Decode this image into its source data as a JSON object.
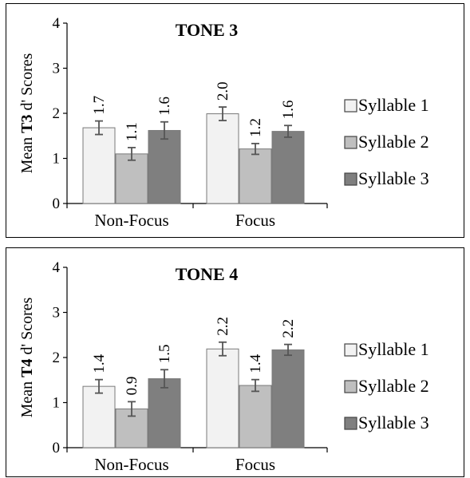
{
  "chart_data": [
    {
      "type": "bar",
      "title": "TONE 3",
      "ylabel_prefix": "Mean",
      "ylabel_bold": "T3",
      "ylabel_suffix": "d' Scores",
      "categories": [
        "Non-Focus",
        "Focus"
      ],
      "ylim": [
        0,
        4
      ],
      "yticks": [
        "0",
        "1",
        "2",
        "3",
        "4"
      ],
      "grid": false,
      "legend_position": "right",
      "series": [
        {
          "name": "Syllable 1",
          "color": "#f2f2f2",
          "values": [
            1.68,
            1.99
          ],
          "errors": [
            0.15,
            0.15
          ],
          "labels": [
            "1.7",
            "2.0"
          ]
        },
        {
          "name": "Syllable 2",
          "color": "#bfbfbf",
          "values": [
            1.1,
            1.21
          ],
          "errors": [
            0.14,
            0.12
          ],
          "labels": [
            "1.1",
            "1.2"
          ]
        },
        {
          "name": "Syllable 3",
          "color": "#7f7f7f",
          "values": [
            1.62,
            1.6
          ],
          "errors": [
            0.19,
            0.13
          ],
          "labels": [
            "1.6",
            "1.6"
          ]
        }
      ]
    },
    {
      "type": "bar",
      "title": "TONE 4",
      "ylabel_prefix": "Mean",
      "ylabel_bold": "T4",
      "ylabel_suffix": "d' Scores",
      "categories": [
        "Non-Focus",
        "Focus"
      ],
      "ylim": [
        0,
        4
      ],
      "yticks": [
        "0",
        "1",
        "2",
        "3",
        "4"
      ],
      "grid": false,
      "legend_position": "right",
      "series": [
        {
          "name": "Syllable 1",
          "color": "#f2f2f2",
          "values": [
            1.36,
            2.19
          ],
          "errors": [
            0.15,
            0.15
          ],
          "labels": [
            "1.4",
            "2.2"
          ]
        },
        {
          "name": "Syllable 2",
          "color": "#bfbfbf",
          "values": [
            0.86,
            1.38
          ],
          "errors": [
            0.16,
            0.13
          ],
          "labels": [
            "0.9",
            "1.4"
          ]
        },
        {
          "name": "Syllable 3",
          "color": "#7f7f7f",
          "values": [
            1.53,
            2.17
          ],
          "errors": [
            0.2,
            0.12
          ],
          "labels": [
            "1.5",
            "2.2"
          ]
        }
      ]
    }
  ]
}
